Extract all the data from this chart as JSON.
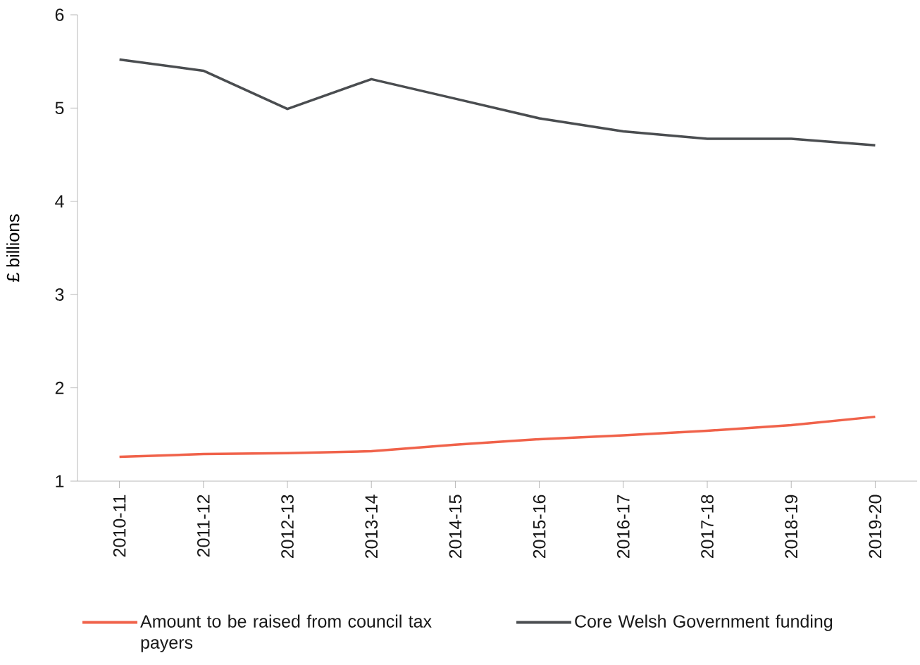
{
  "chart_data": {
    "type": "line",
    "ylabel": "£ billions",
    "categories": [
      "2010-11",
      "2011-12",
      "2012-13",
      "2013-14",
      "2014-15",
      "2015-16",
      "2016-17",
      "2017-18",
      "2018-19",
      "2019-20"
    ],
    "series": [
      {
        "name": "Amount to be raised from council tax payers",
        "color": "#f0624a",
        "values": [
          1.26,
          1.29,
          1.3,
          1.32,
          1.39,
          1.45,
          1.49,
          1.54,
          1.6,
          1.69
        ]
      },
      {
        "name": "Core Welsh Government funding",
        "color": "#4a4d50",
        "values": [
          5.52,
          5.4,
          4.99,
          5.31,
          5.1,
          4.89,
          4.75,
          4.67,
          4.67,
          4.6
        ]
      }
    ],
    "ylim": [
      1,
      6
    ],
    "yticks": [
      1,
      2,
      3,
      4,
      5,
      6
    ],
    "legend": "bottom",
    "marker": "none",
    "line_style": "solid"
  }
}
